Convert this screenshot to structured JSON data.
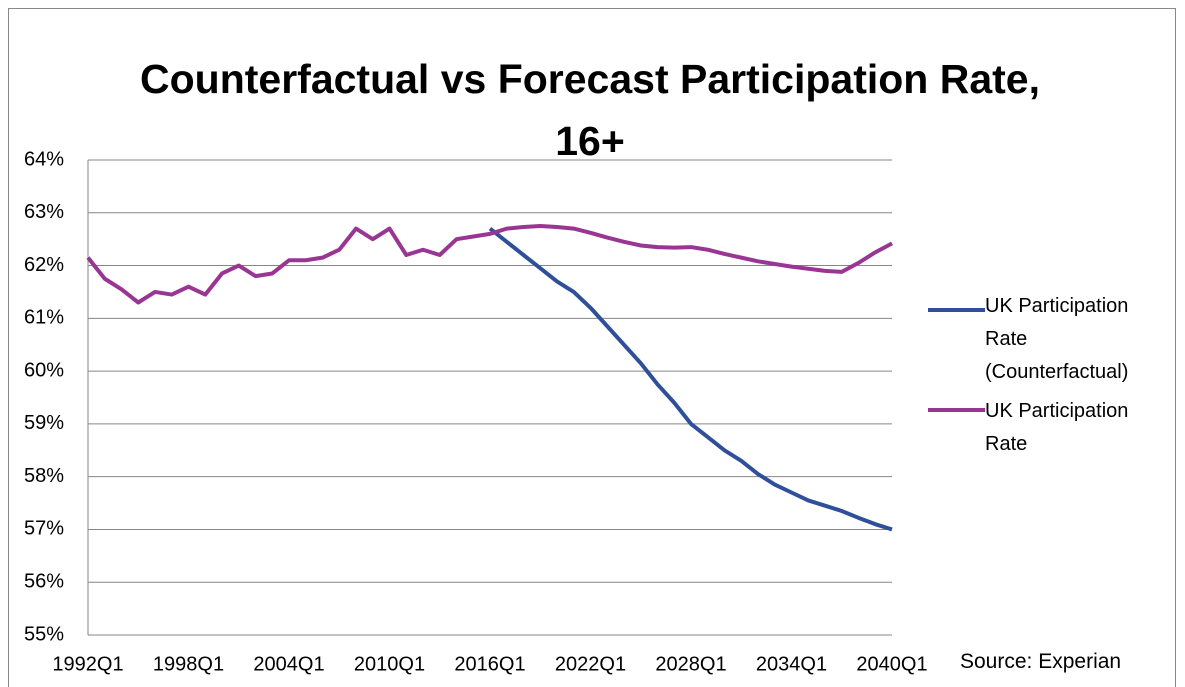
{
  "chart_data": {
    "type": "line",
    "title": "Counterfactual vs Forecast Participation Rate, 16+",
    "source": "Source: Experian",
    "categories": [
      "1992Q1",
      null,
      null,
      null,
      null,
      null,
      "1998Q1",
      null,
      null,
      null,
      null,
      null,
      "2004Q1",
      null,
      null,
      null,
      null,
      null,
      "2010Q1",
      null,
      null,
      null,
      null,
      null,
      "2016Q1",
      null,
      null,
      null,
      null,
      null,
      "2022Q1",
      null,
      null,
      null,
      null,
      null,
      "2028Q1",
      null,
      null,
      null,
      null,
      null,
      "2034Q1",
      null,
      null,
      null,
      null,
      null,
      "2040Q1"
    ],
    "series": [
      {
        "name": "UK Participation Rate (Counterfactual)",
        "color": "#2f4f9b",
        "values": [
          null,
          null,
          null,
          null,
          null,
          null,
          null,
          null,
          null,
          null,
          null,
          null,
          null,
          null,
          null,
          null,
          null,
          null,
          null,
          null,
          null,
          null,
          null,
          null,
          62.7,
          62.45,
          62.2,
          61.95,
          61.7,
          61.5,
          61.2,
          60.85,
          60.5,
          60.15,
          59.75,
          59.4,
          59.0,
          58.75,
          58.5,
          58.3,
          58.05,
          57.85,
          57.7,
          57.55,
          57.45,
          57.35,
          57.22,
          57.1,
          57.0
        ]
      },
      {
        "name": "UK Participation Rate",
        "color": "#993593",
        "values": [
          62.15,
          61.75,
          61.55,
          61.3,
          61.5,
          61.45,
          61.6,
          61.45,
          61.85,
          62.0,
          61.8,
          61.85,
          62.1,
          62.1,
          62.15,
          62.3,
          62.7,
          62.5,
          62.7,
          62.2,
          62.3,
          62.2,
          62.5,
          62.55,
          62.6,
          62.7,
          62.73,
          62.75,
          62.73,
          62.7,
          62.62,
          62.53,
          62.45,
          62.38,
          62.35,
          62.34,
          62.35,
          62.3,
          62.22,
          62.15,
          62.08,
          62.03,
          61.98,
          61.94,
          61.9,
          61.88,
          62.05,
          62.25,
          62.42
        ]
      }
    ],
    "ylim": [
      55,
      64
    ],
    "yticks": [
      {
        "value": 55,
        "label": "55%"
      },
      {
        "value": 56,
        "label": "56%"
      },
      {
        "value": 57,
        "label": "57%"
      },
      {
        "value": 58,
        "label": "58%"
      },
      {
        "value": 59,
        "label": "59%"
      },
      {
        "value": 60,
        "label": "60%"
      },
      {
        "value": 61,
        "label": "61%"
      },
      {
        "value": 62,
        "label": "62%"
      },
      {
        "value": 63,
        "label": "63%"
      },
      {
        "value": 64,
        "label": "64%"
      }
    ],
    "grid": true,
    "legend": "right"
  }
}
